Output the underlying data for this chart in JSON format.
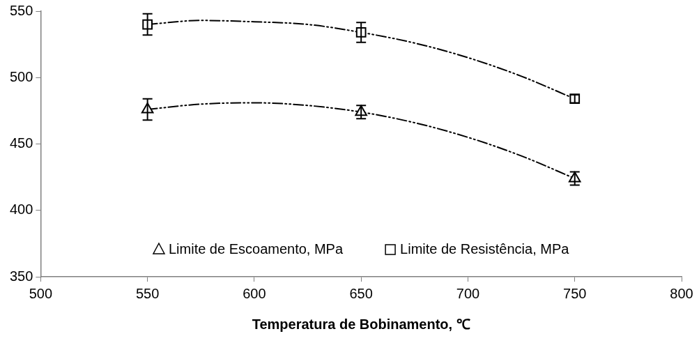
{
  "chart_data": {
    "type": "scatter",
    "xlabel": "Temperatura de Bobinamento, ℃",
    "xlim": [
      500,
      800
    ],
    "xticks": [
      500,
      550,
      600,
      650,
      700,
      750,
      800
    ],
    "ylim": [
      350,
      550
    ],
    "yticks": [
      350,
      400,
      450,
      500,
      550
    ],
    "grid": false,
    "legend": "bottom",
    "series": [
      {
        "name": "Limite de Escoamento, MPa",
        "marker": "triangle",
        "color": "#000000",
        "x": [
          550,
          650,
          750
        ],
        "values": [
          476,
          474,
          424
        ],
        "errors": [
          8,
          5,
          5
        ]
      },
      {
        "name": "Limite de Resistência, MPa",
        "marker": "square",
        "color": "#000000",
        "x": [
          550,
          650,
          750
        ],
        "values": [
          540,
          534,
          484
        ],
        "errors": [
          8,
          7.5,
          3
        ]
      },
      {
        "type": "line",
        "line_style": "dashed",
        "marker": "none",
        "color": "#000000",
        "x": [
          550,
          575,
          600,
          625,
          650,
          675,
          700,
          725,
          750
        ],
        "values": [
          476,
          480,
          481,
          479,
          474,
          466,
          455,
          441,
          424
        ]
      },
      {
        "type": "line",
        "line_style": "dashed",
        "marker": "none",
        "color": "#000000",
        "x": [
          550,
          575,
          600,
          625,
          650,
          675,
          700,
          725,
          750
        ],
        "values": [
          540,
          543,
          542,
          540,
          534,
          526,
          515,
          501,
          484
        ]
      }
    ]
  }
}
